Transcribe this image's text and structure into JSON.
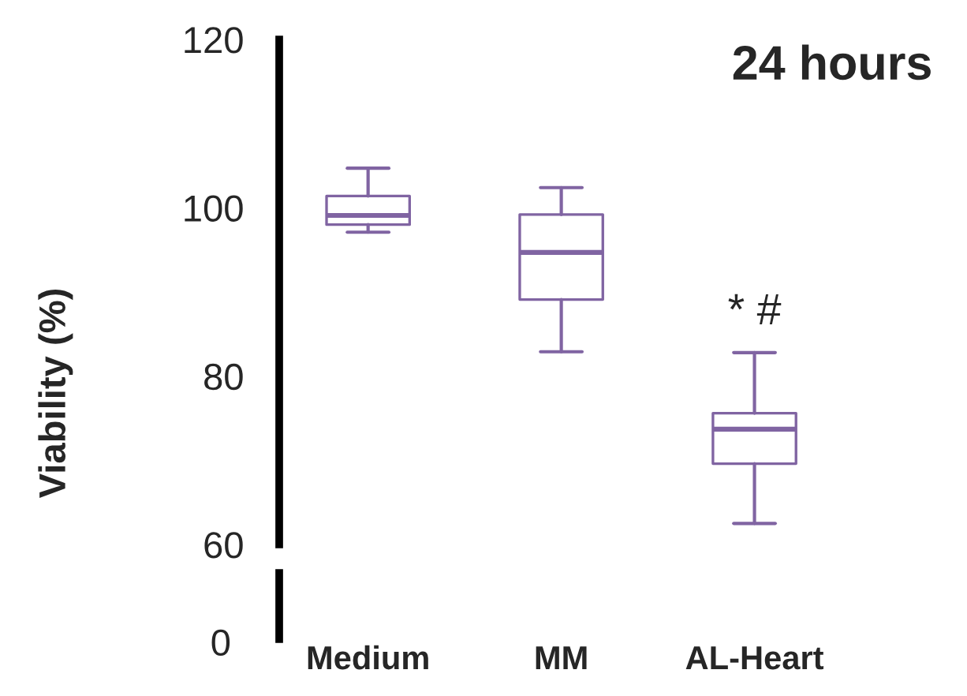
{
  "chart_data": [
    {
      "type": "box",
      "title": "24 hours",
      "ylabel": "Viability (%)",
      "categories": [
        "Medium",
        "MM",
        "AL-Heart"
      ],
      "boxes": [
        {
          "low": 97.1,
          "q1": 98.0,
          "median": 99.1,
          "q3": 101.4,
          "high": 104.7
        },
        {
          "low": 82.9,
          "q1": 89.1,
          "median": 94.7,
          "q3": 99.2,
          "high": 102.4
        },
        {
          "low": 62.5,
          "q1": 69.6,
          "median": 73.7,
          "q3": 75.6,
          "high": 82.8
        }
      ],
      "color": "#8064a2",
      "ylim": [
        60,
        120
      ],
      "yticks": [
        60,
        80,
        100,
        120
      ],
      "grid": false,
      "annotations": [
        "* #"
      ]
    },
    {
      "type": "other",
      "annotations": [
        "0"
      ]
    }
  ]
}
